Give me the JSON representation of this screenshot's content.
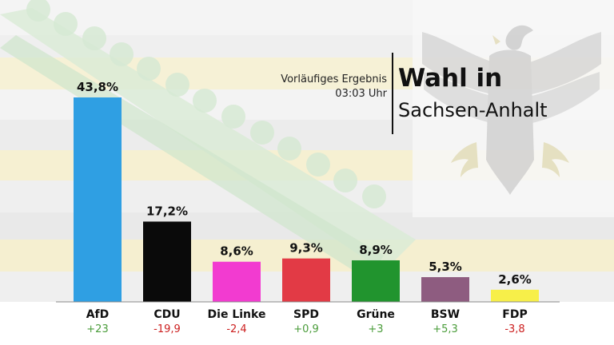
{
  "header": {
    "subtitle_line1": "Vorläufiges Ergebnis",
    "subtitle_line2": "03:03 Uhr",
    "title": "Wahl in",
    "region": "Sachsen-Anhalt"
  },
  "chart_data": {
    "type": "bar",
    "title": "Wahl in Sachsen-Anhalt",
    "categories": [
      "AfD",
      "CDU",
      "Die Linke",
      "SPD",
      "Grüne",
      "BSW",
      "FDP"
    ],
    "values": [
      43.8,
      17.2,
      8.6,
      9.3,
      8.9,
      5.3,
      2.6
    ],
    "value_labels": [
      "43,8%",
      "17,2%",
      "8,6%",
      "9,3%",
      "8,9%",
      "5,3%",
      "2,6%"
    ],
    "changes": [
      "+23",
      "-19,9",
      "-2,4",
      "+0,9",
      "+3",
      "+5,3",
      "-3,8"
    ],
    "colors": [
      "#2f9fe3",
      "#0a0a0a",
      "#f23bd0",
      "#e23a45",
      "#21942e",
      "#8e5c80",
      "#f7ef49"
    ],
    "change_colors": {
      "positive": "#4a9c3a",
      "negative": "#cc1f1f"
    },
    "ylim": [
      0,
      45
    ]
  }
}
